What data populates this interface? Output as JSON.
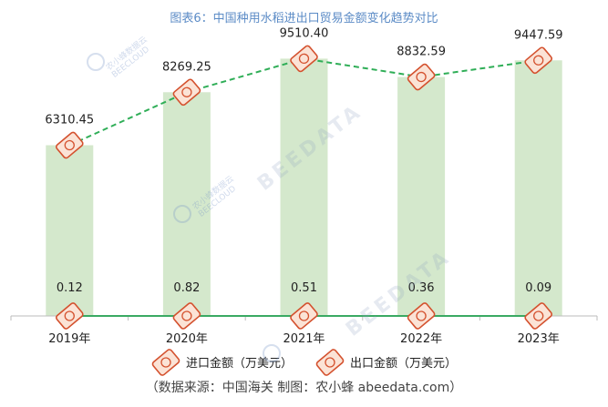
{
  "title": "图表6：中国种用水稻进出口贸易金额变化趋势对比",
  "source": "（数据来源：中国海关    制图：农小蜂 abeedata.com）",
  "watermarks": {
    "text": "BEEDATA",
    "brand_cn": "农小蜂数据云",
    "brand_en": "BEECLOUD"
  },
  "colors": {
    "import_line": "#3aaa63",
    "import_bar": "#d4e8cc",
    "export_line": "#2fae57",
    "marker": "#d4512e",
    "title": "#5b8bc6"
  },
  "chart_data": {
    "type": "bar",
    "categories": [
      "2019年",
      "2020年",
      "2021年",
      "2022年",
      "2023年"
    ],
    "series": [
      {
        "name": "进口金额（万美元）",
        "type": "bar+line",
        "values": [
          0.12,
          0.82,
          0.51,
          0.36,
          0.09
        ],
        "labels": [
          "0.12",
          "0.82",
          "0.51",
          "0.36",
          "0.09"
        ]
      },
      {
        "name": "出口金额（万美元）",
        "type": "bar+line-dashed",
        "values": [
          6310.45,
          8269.25,
          9510.4,
          8832.59,
          9447.59
        ],
        "labels": [
          "6310.45",
          "8269.25",
          "9510.40",
          "8832.59",
          "9447.59"
        ]
      }
    ],
    "ylim": [
      0,
      10500
    ],
    "xlabel": "",
    "ylabel": "",
    "grid": false,
    "legend_position": "bottom"
  }
}
